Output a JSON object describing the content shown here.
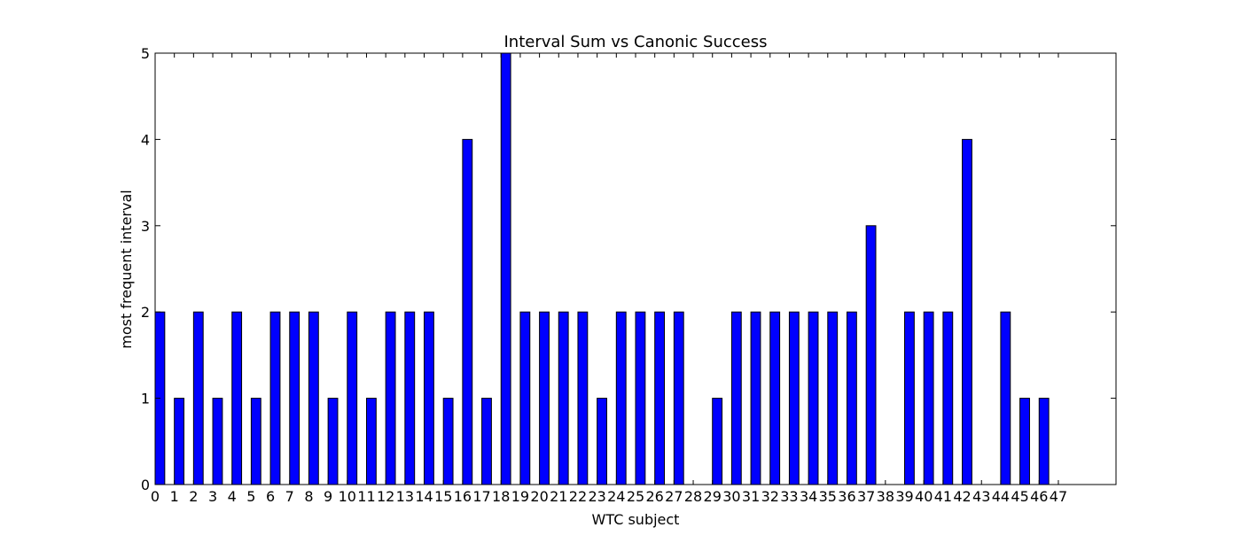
{
  "chart_data": {
    "type": "bar",
    "title": "Interval Sum vs Canonic Success",
    "xlabel": "WTC subject",
    "ylabel": "most frequent interval",
    "categories": [
      "0",
      "1",
      "2",
      "3",
      "4",
      "5",
      "6",
      "7",
      "8",
      "9",
      "10",
      "11",
      "12",
      "13",
      "14",
      "15",
      "16",
      "17",
      "18",
      "19",
      "20",
      "21",
      "22",
      "23",
      "24",
      "25",
      "26",
      "27",
      "28",
      "29",
      "30",
      "31",
      "32",
      "33",
      "34",
      "35",
      "36",
      "37",
      "38",
      "39",
      "40",
      "41",
      "42",
      "43",
      "44",
      "45",
      "46",
      "47"
    ],
    "values": [
      2,
      1,
      2,
      1,
      2,
      1,
      2,
      2,
      2,
      1,
      2,
      1,
      2,
      2,
      2,
      1,
      4,
      1,
      5,
      2,
      2,
      2,
      2,
      1,
      2,
      2,
      2,
      2,
      0,
      1,
      2,
      2,
      2,
      2,
      2,
      2,
      2,
      3,
      0,
      2,
      2,
      2,
      4,
      0,
      2,
      1,
      1,
      0
    ],
    "xlim": [
      0,
      50
    ],
    "ylim": [
      0,
      5
    ],
    "yticks": [
      0,
      1,
      2,
      3,
      4,
      5
    ],
    "bar_color": "#0000ff",
    "edge_color": "#000000",
    "grid": false,
    "legend": "none"
  }
}
